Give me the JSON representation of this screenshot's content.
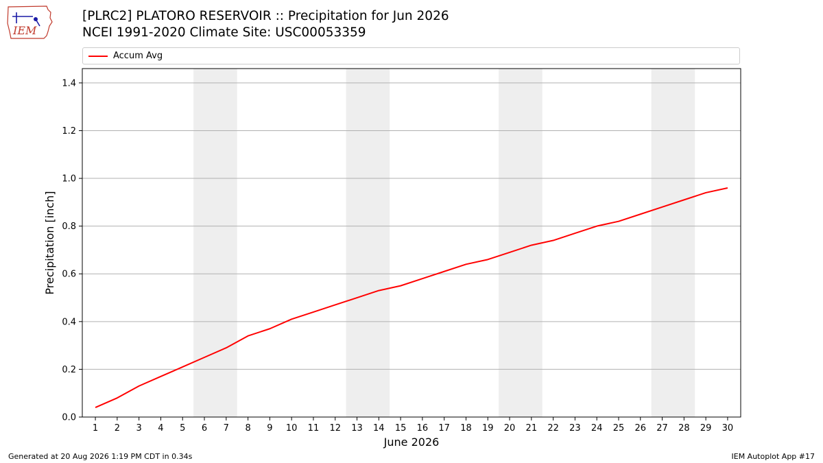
{
  "header": {
    "title_line1": "[PLRC2] PLATORO RESERVOIR :: Precipitation for Jun 2026",
    "title_line2": "NCEI 1991-2020 Climate Site: USC00053359",
    "logo_text": "IEM"
  },
  "footer": {
    "generated": "Generated at 20 Aug 2026 1:19 PM CDT in 0.34s",
    "app": "IEM Autoplot App #17"
  },
  "colors": {
    "series": "#ff0000",
    "weekend_band": "#eeeeee",
    "grid": "#b0b0b0"
  },
  "chart_data": {
    "type": "line",
    "title": "[PLRC2] PLATORO RESERVOIR :: Precipitation for Jun 2026",
    "xlabel": "June 2026",
    "ylabel": "Precipitation [inch]",
    "xlim": [
      0.4,
      30.6
    ],
    "ylim": [
      0,
      1.46
    ],
    "x_ticks": [
      1,
      2,
      3,
      4,
      5,
      6,
      7,
      8,
      9,
      10,
      11,
      12,
      13,
      14,
      15,
      16,
      17,
      18,
      19,
      20,
      21,
      22,
      23,
      24,
      25,
      26,
      27,
      28,
      29,
      30
    ],
    "y_ticks": [
      0.0,
      0.2,
      0.4,
      0.6,
      0.8,
      1.0,
      1.2,
      1.4
    ],
    "y_tick_labels": [
      "0.0",
      "0.2",
      "0.4",
      "0.6",
      "0.8",
      "1.0",
      "1.2",
      "1.4"
    ],
    "grid": "horizontal",
    "legend_position": "top",
    "weekend_bands": [
      [
        5.5,
        7.5
      ],
      [
        12.5,
        14.5
      ],
      [
        19.5,
        21.5
      ],
      [
        26.5,
        28.5
      ]
    ],
    "series": [
      {
        "name": "Accum Avg",
        "x": [
          1,
          2,
          3,
          4,
          5,
          6,
          7,
          8,
          9,
          10,
          11,
          12,
          13,
          14,
          15,
          16,
          17,
          18,
          19,
          20,
          21,
          22,
          23,
          24,
          25,
          26,
          27,
          28,
          29,
          30
        ],
        "values": [
          0.04,
          0.08,
          0.13,
          0.17,
          0.21,
          0.25,
          0.29,
          0.34,
          0.37,
          0.41,
          0.44,
          0.47,
          0.5,
          0.53,
          0.55,
          0.58,
          0.61,
          0.64,
          0.66,
          0.69,
          0.72,
          0.74,
          0.77,
          0.8,
          0.82,
          0.85,
          0.88,
          0.91,
          0.94,
          0.96
        ]
      }
    ]
  }
}
